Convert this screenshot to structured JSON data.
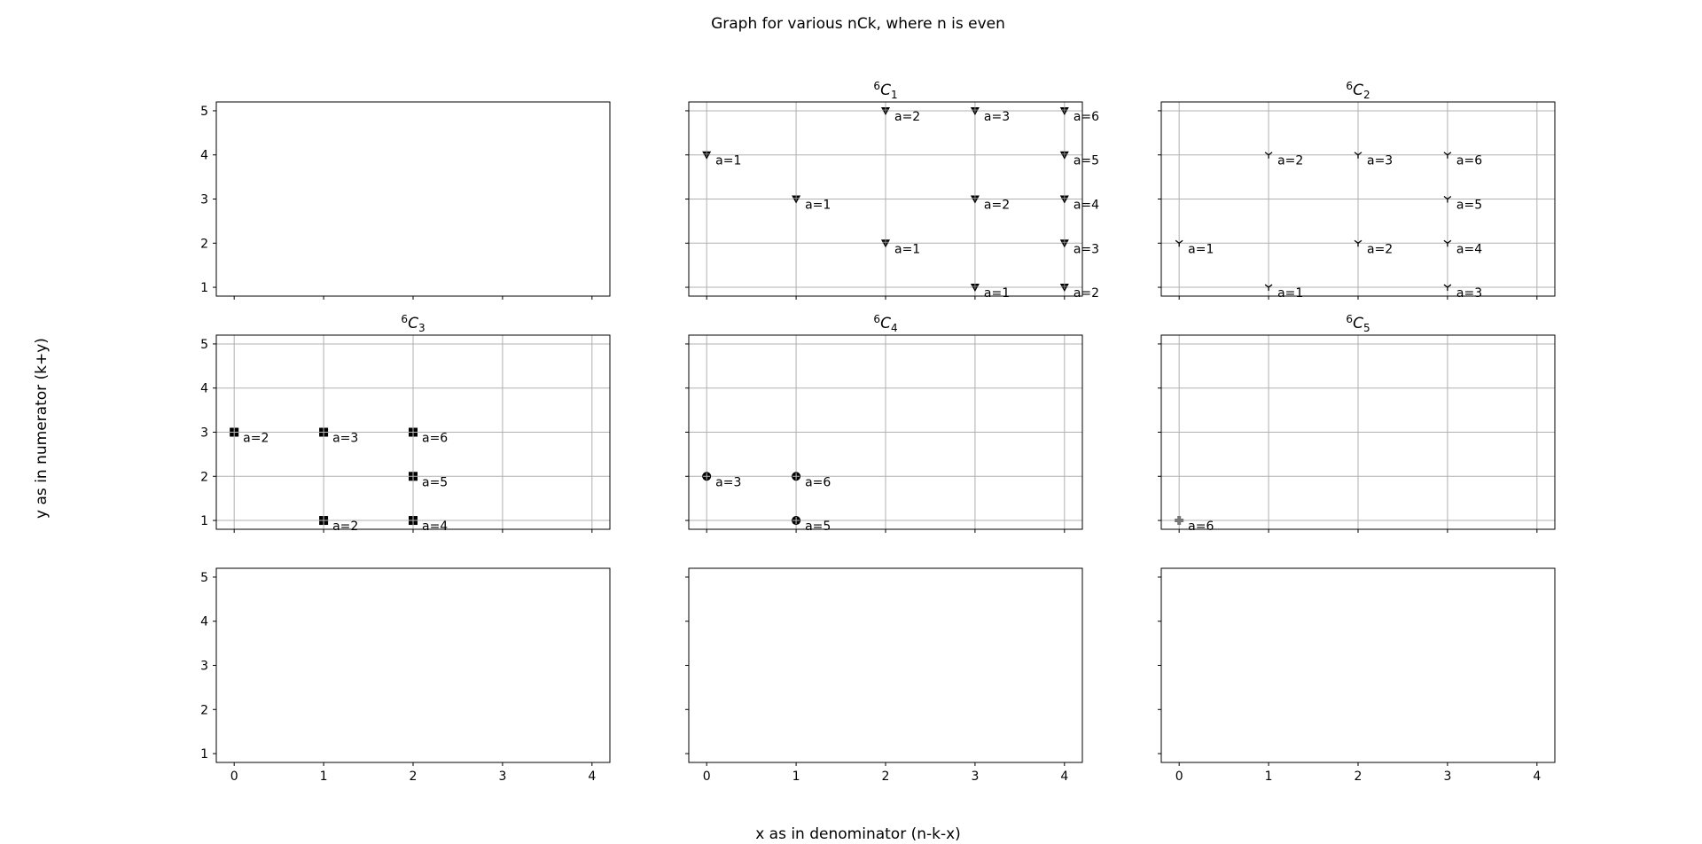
{
  "figure": {
    "suptitle": "Graph for various nCk, where n is even",
    "xlabel": "x as in denominator (n-k-x)",
    "ylabel": "y as in numerator (k+y)"
  },
  "chart_data": {
    "type": "scatter",
    "grid_layout": [
      3,
      3
    ],
    "xlim": [
      -0.2,
      4.2
    ],
    "ylim": [
      0.8,
      5.2
    ],
    "xticks": [
      0,
      1,
      2,
      3,
      4
    ],
    "yticks": [
      1,
      2,
      3,
      4,
      5
    ],
    "sharex": true,
    "sharey": true,
    "subplots": [
      {
        "row": 0,
        "col": 0,
        "title_sup": "",
        "title_main": "",
        "title_sub": "",
        "grid": false,
        "marker": "",
        "points": []
      },
      {
        "row": 0,
        "col": 1,
        "title_sup": "6",
        "title_main": "C",
        "title_sub": "1",
        "grid": true,
        "marker": "triangle-down-plus",
        "points": [
          {
            "x": 0,
            "y": 4,
            "label": "a=1"
          },
          {
            "x": 1,
            "y": 3,
            "label": "a=1"
          },
          {
            "x": 2,
            "y": 5,
            "label": "a=2"
          },
          {
            "x": 2,
            "y": 2,
            "label": "a=1"
          },
          {
            "x": 3,
            "y": 5,
            "label": "a=3"
          },
          {
            "x": 3,
            "y": 3,
            "label": "a=2"
          },
          {
            "x": 3,
            "y": 1,
            "label": "a=1"
          },
          {
            "x": 4,
            "y": 5,
            "label": "a=6"
          },
          {
            "x": 4,
            "y": 4,
            "label": "a=5"
          },
          {
            "x": 4,
            "y": 3,
            "label": "a=4"
          },
          {
            "x": 4,
            "y": 2,
            "label": "a=3"
          },
          {
            "x": 4,
            "y": 1,
            "label": "a=2"
          }
        ]
      },
      {
        "row": 0,
        "col": 2,
        "title_sup": "6",
        "title_main": "C",
        "title_sub": "2",
        "grid": true,
        "marker": "tri-down",
        "points": [
          {
            "x": 0,
            "y": 2,
            "label": "a=1"
          },
          {
            "x": 1,
            "y": 4,
            "label": "a=2"
          },
          {
            "x": 1,
            "y": 1,
            "label": "a=1"
          },
          {
            "x": 2,
            "y": 4,
            "label": "a=3"
          },
          {
            "x": 2,
            "y": 2,
            "label": "a=2"
          },
          {
            "x": 3,
            "y": 4,
            "label": "a=6"
          },
          {
            "x": 3,
            "y": 3,
            "label": "a=5"
          },
          {
            "x": 3,
            "y": 2,
            "label": "a=4"
          },
          {
            "x": 3,
            "y": 1,
            "label": "a=3"
          }
        ]
      },
      {
        "row": 1,
        "col": 0,
        "title_sup": "6",
        "title_main": "C",
        "title_sub": "3",
        "grid": true,
        "marker": "square-plus",
        "points": [
          {
            "x": 0,
            "y": 3,
            "label": "a=2"
          },
          {
            "x": 1,
            "y": 3,
            "label": "a=3"
          },
          {
            "x": 1,
            "y": 1,
            "label": "a=2"
          },
          {
            "x": 2,
            "y": 3,
            "label": "a=6"
          },
          {
            "x": 2,
            "y": 2,
            "label": "a=5"
          },
          {
            "x": 2,
            "y": 1,
            "label": "a=4"
          }
        ]
      },
      {
        "row": 1,
        "col": 1,
        "title_sup": "6",
        "title_main": "C",
        "title_sub": "4",
        "grid": true,
        "marker": "circle-plus",
        "points": [
          {
            "x": 0,
            "y": 2,
            "label": "a=3"
          },
          {
            "x": 1,
            "y": 2,
            "label": "a=6"
          },
          {
            "x": 1,
            "y": 1,
            "label": "a=5"
          }
        ]
      },
      {
        "row": 1,
        "col": 2,
        "title_sup": "6",
        "title_main": "C",
        "title_sub": "5",
        "grid": true,
        "marker": "plus-filled",
        "points": [
          {
            "x": 0,
            "y": 1,
            "label": "a=6"
          }
        ]
      },
      {
        "row": 2,
        "col": 0,
        "title_sup": "",
        "title_main": "",
        "title_sub": "",
        "grid": false,
        "marker": "",
        "points": []
      },
      {
        "row": 2,
        "col": 1,
        "title_sup": "",
        "title_main": "",
        "title_sub": "",
        "grid": false,
        "marker": "",
        "points": []
      },
      {
        "row": 2,
        "col": 2,
        "title_sup": "",
        "title_main": "",
        "title_sub": "",
        "grid": false,
        "marker": "",
        "points": []
      }
    ]
  }
}
